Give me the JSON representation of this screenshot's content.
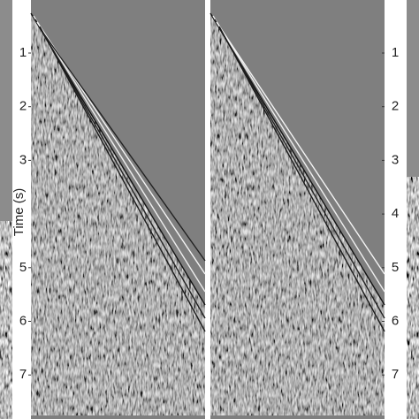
{
  "left_axis": {
    "label": "Time (s)",
    "ticks": [
      1,
      2,
      3,
      5,
      6,
      7
    ]
  },
  "right_axis": {
    "ticks": [
      1,
      2,
      3,
      4,
      5,
      6,
      7
    ]
  }
}
